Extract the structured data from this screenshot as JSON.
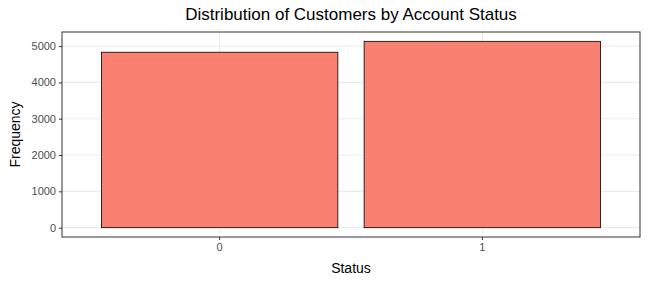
{
  "chart_data": {
    "type": "bar",
    "title": "Distribution of Customers by Account Status",
    "x_label": "Status",
    "y_label": "Frequency",
    "categories": [
      "0",
      "1"
    ],
    "values": [
      4830,
      5130
    ],
    "color": "#FA8072",
    "ylim": [
      -257,
      5387
    ],
    "yticks": [
      0,
      1000,
      2000,
      3000,
      4000,
      5000
    ],
    "grid": true
  }
}
